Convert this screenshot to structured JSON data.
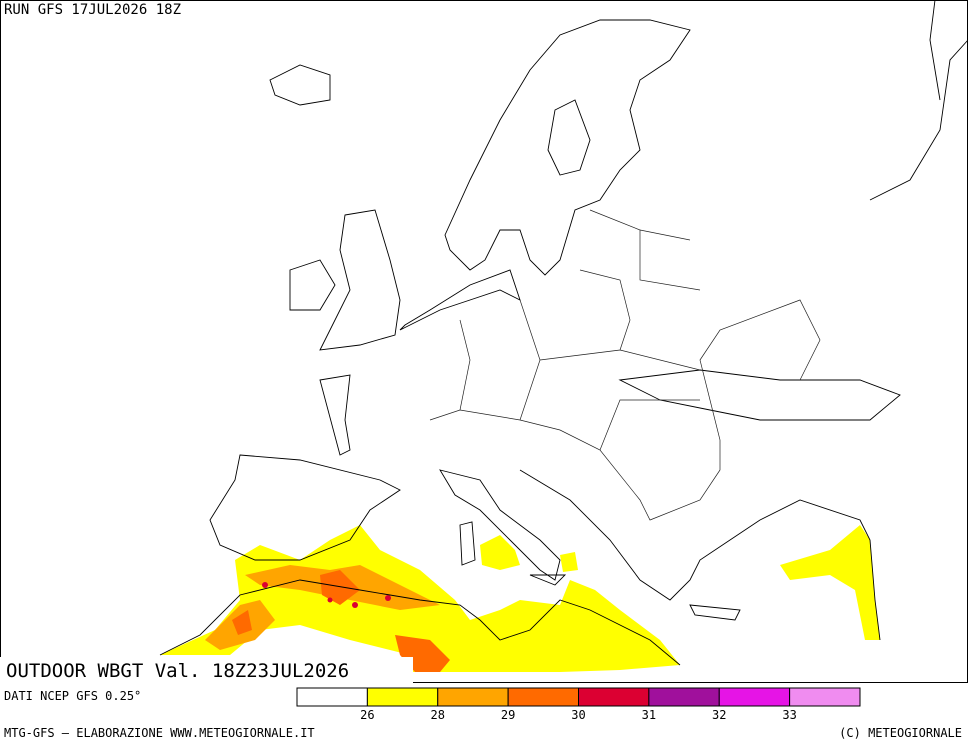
{
  "header": {
    "run": "RUN GFS 17JUL2026 18Z"
  },
  "map": {
    "title": "OUTDOOR WBGT Val. 18Z23JUL2026"
  },
  "legend": {
    "source": "DATI NCEP GFS 0.25°",
    "colors": [
      "#ffffff",
      "#ffff00",
      "#ffa500",
      "#ff6a00",
      "#dc0032",
      "#a0109c",
      "#e614e6",
      "#f08cf0"
    ],
    "ticks": [
      26,
      28,
      29,
      30,
      31,
      32,
      33
    ]
  },
  "footer": {
    "credit": "MTG-GFS — ELABORAZIONE WWW.METEOGIORNALE.IT",
    "copyright": "(C) METEOGIORNALE"
  }
}
